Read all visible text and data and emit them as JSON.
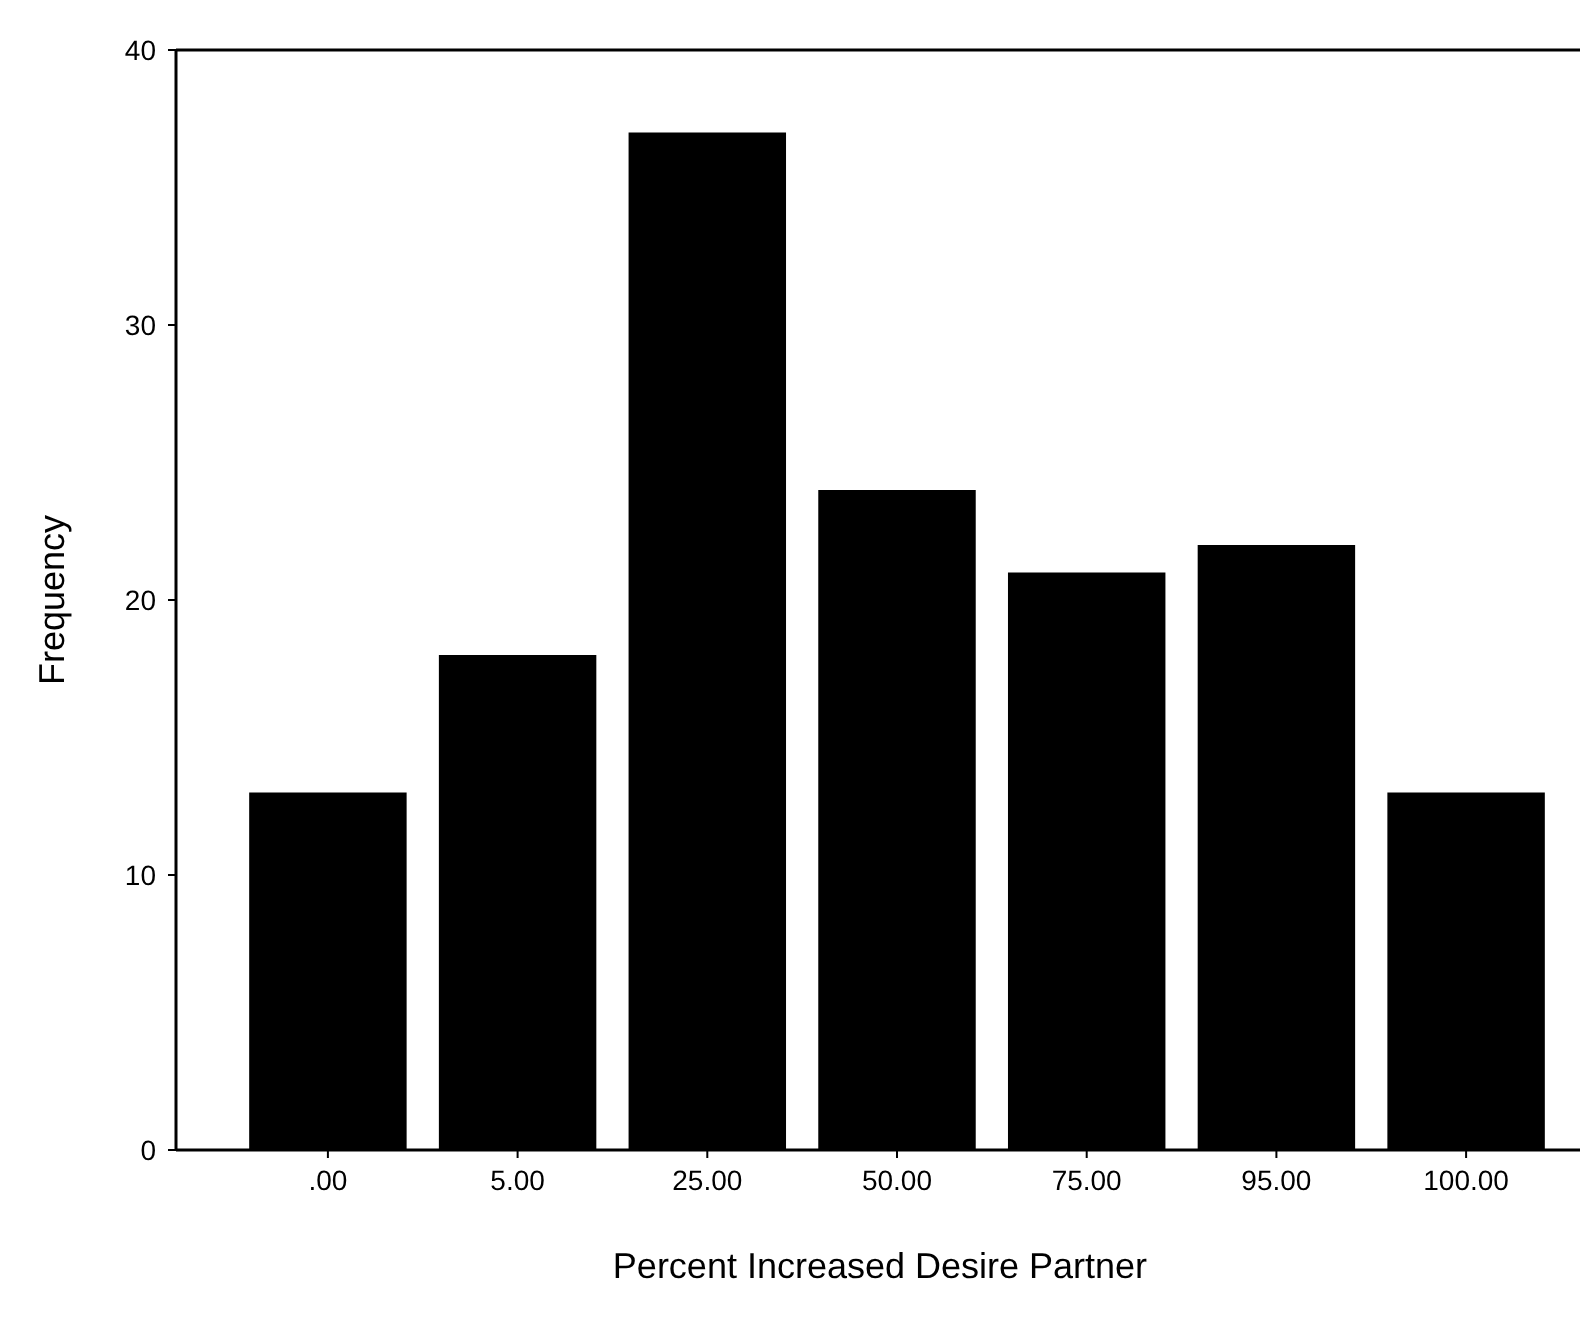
{
  "chart_data": {
    "type": "bar",
    "xlabel": "Percent Increased Desire Partner",
    "ylabel": "Frequency",
    "categories": [
      ".00",
      "5.00",
      "25.00",
      "50.00",
      "75.00",
      "95.00",
      "100.00"
    ],
    "values": [
      13,
      18,
      37,
      24,
      21,
      22,
      13
    ],
    "color": "#000000",
    "ylim": [
      0,
      40
    ],
    "yticks": [
      0,
      10,
      20,
      30,
      40
    ],
    "grid": false
  }
}
